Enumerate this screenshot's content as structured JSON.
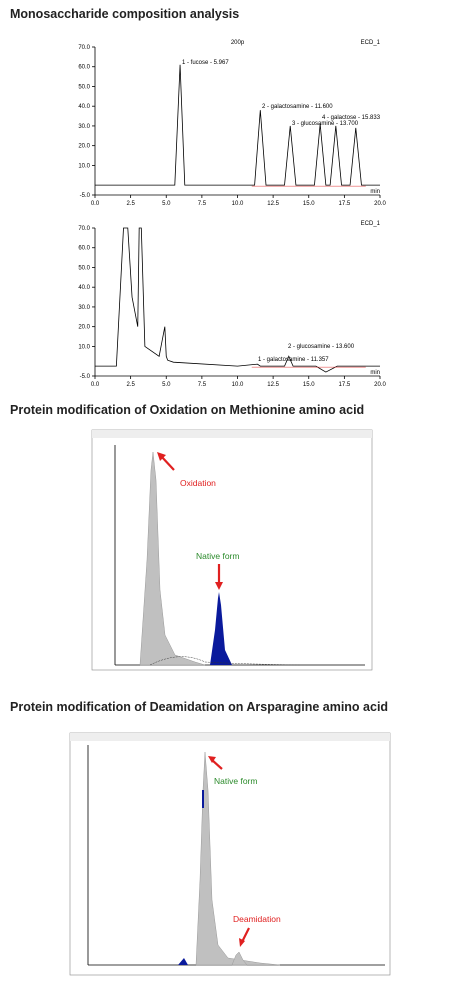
{
  "sections": [
    {
      "title": "Monosaccharide composition analysis",
      "chart_data": [
        {
          "type": "line",
          "title": "200p",
          "channel": "ECD_1",
          "x_label": "min",
          "color": "#000000",
          "x": [
            0,
            5.6,
            5.97,
            6.3,
            11.2,
            11.6,
            12.0,
            13.3,
            13.7,
            14.1,
            15.4,
            15.8,
            16.2,
            16.5,
            16.9,
            17.3,
            17.9,
            18.3,
            18.7,
            20
          ],
          "values": [
            0,
            0,
            61,
            0,
            0,
            38,
            0,
            0,
            30,
            0,
            0,
            31,
            0,
            0,
            30,
            0,
            0,
            29,
            0,
            0
          ],
          "xlim": [
            0,
            20
          ],
          "ylim": [
            -5,
            70
          ],
          "xticks": [
            {
              "value": 0,
              "label": "0.0"
            },
            2.5,
            {
              "value": 5,
              "label": "5.0"
            },
            7.5,
            {
              "value": 10,
              "label": "10.0"
            },
            12.5,
            {
              "value": 15,
              "label": "15.0"
            },
            17.5,
            {
              "value": 20,
              "label": "20.0"
            }
          ],
          "yticks": [
            {
              "value": -5,
              "label": "-5.0"
            },
            {
              "value": 10,
              "label": "10.0"
            },
            {
              "value": 20,
              "label": "20.0"
            },
            {
              "value": 30,
              "label": "30.0"
            },
            {
              "value": 40,
              "label": "40.0"
            },
            {
              "value": 50,
              "label": "50.0"
            },
            {
              "value": 60,
              "label": "60.0"
            },
            {
              "value": 70,
              "label": "70.0"
            }
          ],
          "annotations": [
            "1 - fucose - 5.967",
            "2 - galactosamine - 11.600",
            "3 - glucosamine - 13.700",
            "4 - galactose - 15.833"
          ]
        },
        {
          "type": "line",
          "channel": "ECD_1",
          "x_label": "min",
          "color": "#000000",
          "x": [
            0,
            1.5,
            2.0,
            2.3,
            2.6,
            3.0,
            3.1,
            3.25,
            3.5,
            4.5,
            4.9,
            5.0,
            5.1,
            5.5,
            10,
            11.4,
            11.6,
            13.3,
            13.6,
            13.9,
            15.5,
            16.2,
            17.0,
            20
          ],
          "values": [
            0,
            0,
            70,
            70,
            35,
            20,
            70,
            70,
            10,
            5,
            20,
            5,
            3,
            2,
            0,
            1,
            0,
            0,
            5,
            0,
            0,
            -3,
            0,
            0
          ],
          "xlim": [
            0,
            20
          ],
          "ylim": [
            -5,
            70
          ],
          "xticks": [
            {
              "value": 0,
              "label": "0.0"
            },
            2.5,
            {
              "value": 5,
              "label": "5.0"
            },
            7.5,
            {
              "value": 10,
              "label": "10.0"
            },
            12.5,
            {
              "value": 15,
              "label": "15.0"
            },
            17.5,
            {
              "value": 20,
              "label": "20.0"
            }
          ],
          "yticks": [
            {
              "value": -5,
              "label": "-5.0"
            },
            {
              "value": 10,
              "label": "10.0"
            },
            {
              "value": 20,
              "label": "20.0"
            },
            {
              "value": 30,
              "label": "30.0"
            },
            {
              "value": 40,
              "label": "40.0"
            },
            {
              "value": 50,
              "label": "50.0"
            },
            {
              "value": 60,
              "label": "60.0"
            },
            {
              "value": 70,
              "label": "70.0"
            }
          ],
          "annotations": [
            "1 - galactosamine - 11.357",
            "2 - glucosamine - 13.600"
          ]
        }
      ]
    },
    {
      "title": "Protein modification of Oxidation on Methionine amino acid",
      "annotations": [
        "Oxidation",
        "Native form"
      ]
    },
    {
      "title": "Protein modification of Deamidation on Arsparagine amino acid",
      "annotations": [
        "Native form",
        "Deamidation"
      ]
    }
  ]
}
